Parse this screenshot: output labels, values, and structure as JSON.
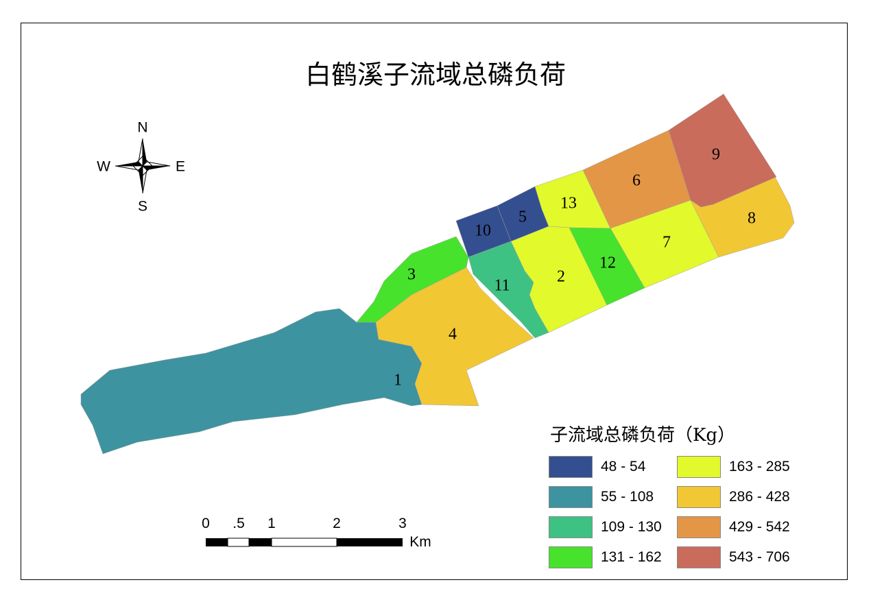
{
  "title": "白鹤溪子流域总磷负荷",
  "legend": {
    "title": "子流域总磷负荷（Kg）",
    "classes": [
      {
        "label": "48 - 54",
        "color": "#344f8f"
      },
      {
        "label": "55 - 108",
        "color": "#3e93a0"
      },
      {
        "label": "109 - 130",
        "color": "#3ec284"
      },
      {
        "label": "131 - 162",
        "color": "#47e22c"
      },
      {
        "label": "163 - 285",
        "color": "#e2f92c"
      },
      {
        "label": "286 - 428",
        "color": "#f2c734"
      },
      {
        "label": "429 - 542",
        "color": "#e39645"
      },
      {
        "label": "543 - 706",
        "color": "#c96c5c"
      }
    ]
  },
  "subbasins": [
    {
      "id": "1",
      "class": 1
    },
    {
      "id": "2",
      "class": 4
    },
    {
      "id": "3",
      "class": 3
    },
    {
      "id": "4",
      "class": 5
    },
    {
      "id": "5",
      "class": 0
    },
    {
      "id": "6",
      "class": 6
    },
    {
      "id": "7",
      "class": 4
    },
    {
      "id": "8",
      "class": 5
    },
    {
      "id": "9",
      "class": 7
    },
    {
      "id": "10",
      "class": 0
    },
    {
      "id": "11",
      "class": 2
    },
    {
      "id": "12",
      "class": 3
    },
    {
      "id": "13",
      "class": 4
    }
  ],
  "compass": {
    "n": "N",
    "s": "S",
    "e": "E",
    "w": "W"
  },
  "scale_bar": {
    "ticks": [
      "0",
      ".5",
      "1",
      "2",
      "3"
    ],
    "unit": "Km"
  }
}
